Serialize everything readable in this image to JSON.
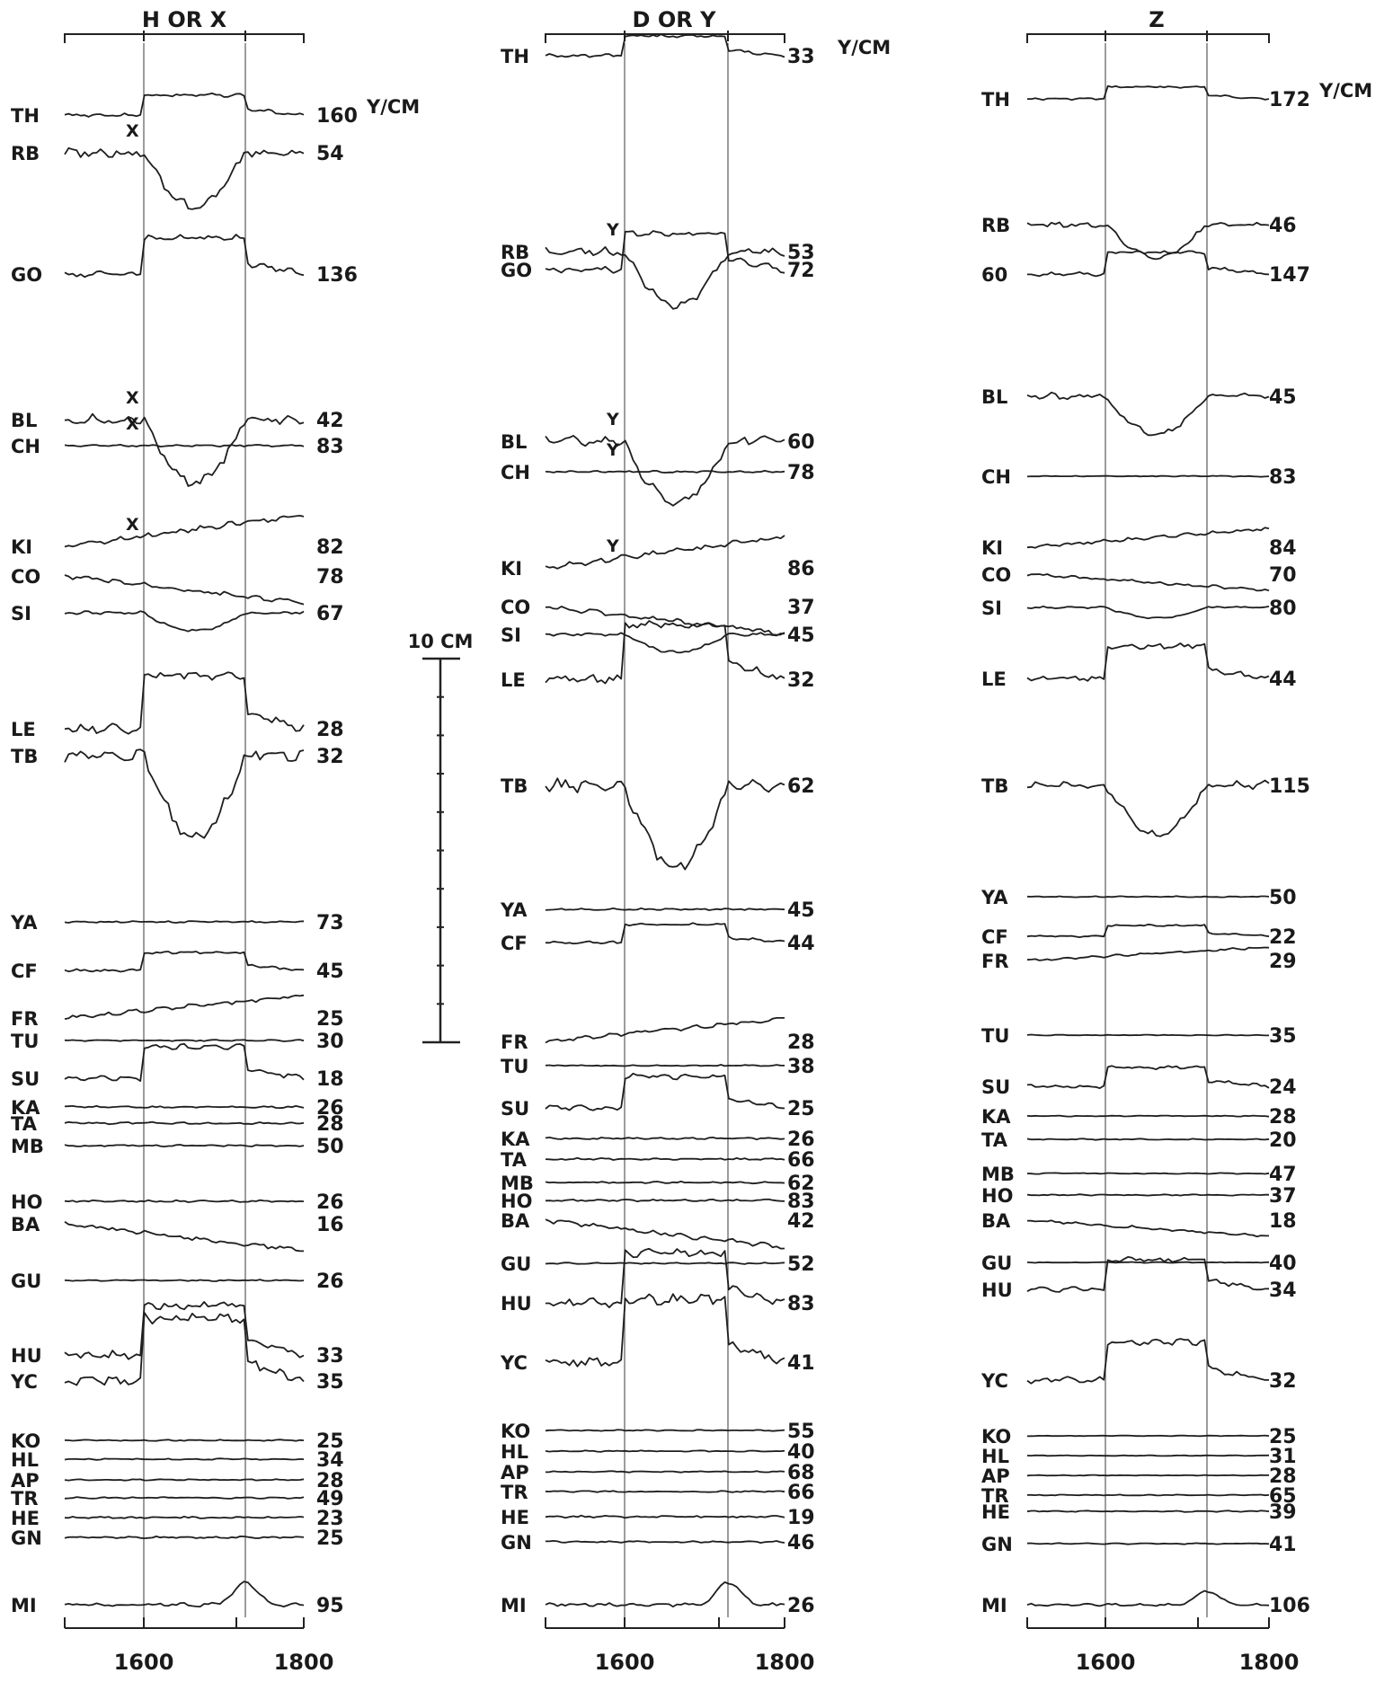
{
  "chart_data": [
    {
      "type": "line",
      "title": "H OR X",
      "x_ticks": [
        "1600",
        "1800"
      ],
      "xlim": [
        1500,
        1800
      ],
      "unit_label": "Y/CM",
      "marker_letter": "X",
      "stations": [
        {
          "code": "TH",
          "scale": "160",
          "marker": false
        },
        {
          "code": "RB",
          "scale": "54",
          "marker": true
        },
        {
          "code": "GO",
          "scale": "136",
          "marker": false
        },
        {
          "code": "BL",
          "scale": "42",
          "marker": true
        },
        {
          "code": "CH",
          "scale": "83",
          "marker": true
        },
        {
          "code": "KI",
          "scale": "82",
          "marker": true
        },
        {
          "code": "CO",
          "scale": "78",
          "marker": false
        },
        {
          "code": "SI",
          "scale": "67",
          "marker": false
        },
        {
          "code": "LE",
          "scale": "28",
          "marker": false
        },
        {
          "code": "TB",
          "scale": "32",
          "marker": false
        },
        {
          "code": "YA",
          "scale": "73",
          "marker": false
        },
        {
          "code": "CF",
          "scale": "45",
          "marker": false
        },
        {
          "code": "FR",
          "scale": "25",
          "marker": false
        },
        {
          "code": "TU",
          "scale": "30",
          "marker": false
        },
        {
          "code": "SU",
          "scale": "18",
          "marker": false
        },
        {
          "code": "KA",
          "scale": "26",
          "marker": false
        },
        {
          "code": "TA",
          "scale": "28",
          "marker": false
        },
        {
          "code": "MB",
          "scale": "50",
          "marker": false
        },
        {
          "code": "HO",
          "scale": "26",
          "marker": false
        },
        {
          "code": "BA",
          "scale": "16",
          "marker": false
        },
        {
          "code": "GU",
          "scale": "26",
          "marker": false
        },
        {
          "code": "HU",
          "scale": "33",
          "marker": false
        },
        {
          "code": "YC",
          "scale": "35",
          "marker": false
        },
        {
          "code": "KO",
          "scale": "25",
          "marker": false
        },
        {
          "code": "HL",
          "scale": "34",
          "marker": false
        },
        {
          "code": "AP",
          "scale": "28",
          "marker": false
        },
        {
          "code": "TR",
          "scale": "49",
          "marker": false
        },
        {
          "code": "HE",
          "scale": "23",
          "marker": false
        },
        {
          "code": "GN",
          "scale": "25",
          "marker": false
        },
        {
          "code": "MI",
          "scale": "95",
          "marker": false
        }
      ]
    },
    {
      "type": "line",
      "title": "D OR Y",
      "x_ticks": [
        "1600",
        "1800"
      ],
      "xlim": [
        1500,
        1800
      ],
      "unit_label": "Y/CM",
      "marker_letter": "Y",
      "stations": [
        {
          "code": "TH",
          "scale": "33",
          "marker": false
        },
        {
          "code": "RB",
          "scale": "53",
          "marker": true
        },
        {
          "code": "GO",
          "scale": "72",
          "marker": false
        },
        {
          "code": "BL",
          "scale": "60",
          "marker": true
        },
        {
          "code": "CH",
          "scale": "78",
          "marker": true
        },
        {
          "code": "KI",
          "scale": "86",
          "marker": true
        },
        {
          "code": "CO",
          "scale": "37",
          "marker": false
        },
        {
          "code": "SI",
          "scale": "45",
          "marker": false
        },
        {
          "code": "LE",
          "scale": "32",
          "marker": false
        },
        {
          "code": "TB",
          "scale": "62",
          "marker": false
        },
        {
          "code": "YA",
          "scale": "45",
          "marker": false
        },
        {
          "code": "CF",
          "scale": "44",
          "marker": false
        },
        {
          "code": "FR",
          "scale": "28",
          "marker": false
        },
        {
          "code": "TU",
          "scale": "38",
          "marker": false
        },
        {
          "code": "SU",
          "scale": "25",
          "marker": false
        },
        {
          "code": "KA",
          "scale": "26",
          "marker": false
        },
        {
          "code": "TA",
          "scale": "66",
          "marker": false
        },
        {
          "code": "MB",
          "scale": "62",
          "marker": false
        },
        {
          "code": "HO",
          "scale": "83",
          "marker": false
        },
        {
          "code": "BA",
          "scale": "42",
          "marker": false
        },
        {
          "code": "GU",
          "scale": "52",
          "marker": false
        },
        {
          "code": "HU",
          "scale": "83",
          "marker": false
        },
        {
          "code": "YC",
          "scale": "41",
          "marker": false
        },
        {
          "code": "KO",
          "scale": "55",
          "marker": false
        },
        {
          "code": "HL",
          "scale": "40",
          "marker": false
        },
        {
          "code": "AP",
          "scale": "68",
          "marker": false
        },
        {
          "code": "TR",
          "scale": "66",
          "marker": false
        },
        {
          "code": "HE",
          "scale": "19",
          "marker": false
        },
        {
          "code": "GN",
          "scale": "46",
          "marker": false
        },
        {
          "code": "MI",
          "scale": "26",
          "marker": false
        }
      ]
    },
    {
      "type": "line",
      "title": "Z",
      "x_ticks": [
        "1600",
        "1800"
      ],
      "xlim": [
        1500,
        1800
      ],
      "unit_label": "Y/CM",
      "marker_letter": "",
      "stations": [
        {
          "code": "TH",
          "scale": "172",
          "marker": false
        },
        {
          "code": "RB",
          "scale": "46",
          "marker": false
        },
        {
          "code": "60",
          "scale": "147",
          "marker": false
        },
        {
          "code": "BL",
          "scale": "45",
          "marker": false
        },
        {
          "code": "CH",
          "scale": "83",
          "marker": false
        },
        {
          "code": "KI",
          "scale": "84",
          "marker": false
        },
        {
          "code": "CO",
          "scale": "70",
          "marker": false
        },
        {
          "code": "SI",
          "scale": "80",
          "marker": false
        },
        {
          "code": "LE",
          "scale": "44",
          "marker": false
        },
        {
          "code": "TB",
          "scale": "115",
          "marker": false
        },
        {
          "code": "YA",
          "scale": "50",
          "marker": false
        },
        {
          "code": "CF",
          "scale": "22",
          "marker": false
        },
        {
          "code": "FR",
          "scale": "29",
          "marker": false
        },
        {
          "code": "TU",
          "scale": "35",
          "marker": false
        },
        {
          "code": "SU",
          "scale": "24",
          "marker": false
        },
        {
          "code": "KA",
          "scale": "28",
          "marker": false
        },
        {
          "code": "TA",
          "scale": "20",
          "marker": false
        },
        {
          "code": "MB",
          "scale": "47",
          "marker": false
        },
        {
          "code": "HO",
          "scale": "37",
          "marker": false
        },
        {
          "code": "BA",
          "scale": "18",
          "marker": false
        },
        {
          "code": "GU",
          "scale": "40",
          "marker": false
        },
        {
          "code": "HU",
          "scale": "34",
          "marker": false
        },
        {
          "code": "YC",
          "scale": "32",
          "marker": false
        },
        {
          "code": "KO",
          "scale": "25",
          "marker": false
        },
        {
          "code": "HL",
          "scale": "31",
          "marker": false
        },
        {
          "code": "AP",
          "scale": "28",
          "marker": false
        },
        {
          "code": "TR",
          "scale": "65",
          "marker": false
        },
        {
          "code": "HE",
          "scale": "39",
          "marker": false
        },
        {
          "code": "GN",
          "scale": "41",
          "marker": false
        },
        {
          "code": "MI",
          "scale": "106",
          "marker": false
        }
      ]
    }
  ],
  "scale_bar": {
    "label": "10 CM"
  }
}
